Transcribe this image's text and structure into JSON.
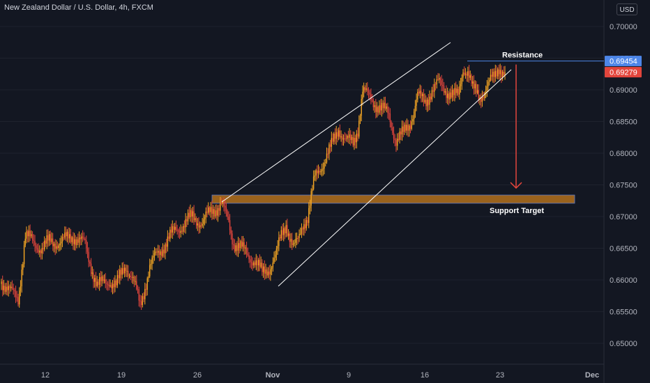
{
  "header": {
    "title": "New Zealand Dollar / U.S. Dollar, 4h, FXCM",
    "currency_button": "USD"
  },
  "colors": {
    "background": "#131722",
    "up_candle": "#f5a623",
    "down_candle": "#e2453c",
    "channel_line": "#ffffff",
    "support_zone": "#b8731c",
    "resistance_line": "#4d86e8",
    "arrow": "#e2453c",
    "price_tag_blue": "#4d86e8",
    "price_tag_red": "#e2453c"
  },
  "chart_data": {
    "type": "candlestick",
    "title": "New Zealand Dollar / U.S. Dollar, 4h, FXCM",
    "x_tick_labels": [
      "12",
      "19",
      "26",
      "Nov",
      "9",
      "16",
      "23",
      "Dec"
    ],
    "y_tick_labels": [
      "0.70000",
      "0.69500",
      "0.69000",
      "0.68500",
      "0.68000",
      "0.67500",
      "0.67000",
      "0.66500",
      "0.66000",
      "0.65500",
      "0.65000"
    ],
    "ylim": [
      0.6445,
      0.7027
    ],
    "price_tags": [
      {
        "label": "0.69454",
        "value": 0.69454,
        "color": "blue"
      },
      {
        "label": "0.69279",
        "value": 0.69279,
        "color": "red"
      }
    ],
    "annotations": {
      "resistance_label": "Resistance",
      "support_label": "Support Target",
      "resistance_level": 0.69454,
      "support_zone": [
        0.6721,
        0.6734
      ],
      "target_arrow": {
        "from": 0.694,
        "to": 0.6745
      }
    },
    "series": [
      {
        "anchors": [
          [
            0,
            0.66
          ],
          [
            8,
            0.658
          ],
          [
            14,
            0.657
          ],
          [
            20,
            0.667
          ],
          [
            26,
            0.666
          ],
          [
            34,
            0.665
          ],
          [
            40,
            0.666
          ],
          [
            50,
            0.666
          ],
          [
            60,
            0.667
          ],
          [
            70,
            0.6655
          ],
          [
            80,
            0.659
          ],
          [
            90,
            0.66
          ],
          [
            96,
            0.659
          ],
          [
            104,
            0.6625
          ],
          [
            110,
            0.66
          ],
          [
            116,
            0.656
          ],
          [
            124,
            0.662
          ],
          [
            130,
            0.664
          ],
          [
            138,
            0.666
          ],
          [
            146,
            0.668
          ],
          [
            154,
            0.669
          ],
          [
            160,
            0.67
          ],
          [
            168,
            0.669
          ],
          [
            176,
            0.671
          ],
          [
            184,
            0.672
          ],
          [
            190,
            0.669
          ],
          [
            194,
            0.666
          ],
          [
            200,
            0.665
          ],
          [
            206,
            0.664
          ],
          [
            212,
            0.663
          ],
          [
            218,
            0.661
          ],
          [
            224,
            0.662
          ],
          [
            230,
            0.664
          ],
          [
            234,
            0.667
          ],
          [
            238,
            0.669
          ],
          [
            244,
            0.665
          ],
          [
            248,
            0.666
          ],
          [
            252,
            0.669
          ],
          [
            256,
            0.67
          ],
          [
            262,
            0.676
          ],
          [
            270,
            0.679
          ],
          [
            276,
            0.681
          ],
          [
            282,
            0.684
          ],
          [
            288,
            0.682
          ],
          [
            294,
            0.6815
          ],
          [
            298,
            0.684
          ],
          [
            302,
            0.69
          ],
          [
            306,
            0.689
          ],
          [
            312,
            0.688
          ],
          [
            318,
            0.687
          ],
          [
            324,
            0.686
          ],
          [
            330,
            0.682
          ],
          [
            336,
            0.683
          ],
          [
            342,
            0.685
          ],
          [
            348,
            0.689
          ],
          [
            354,
            0.688
          ],
          [
            360,
            0.69
          ],
          [
            366,
            0.691
          ],
          [
            372,
            0.69
          ],
          [
            378,
            0.689
          ],
          [
            382,
            0.689
          ],
          [
            386,
            0.6935
          ],
          [
            390,
            0.693
          ],
          [
            394,
            0.69
          ],
          [
            400,
            0.689
          ],
          [
            406,
            0.6905
          ],
          [
            412,
            0.692
          ],
          [
            416,
            0.6938
          ],
          [
            419,
            0.693
          ],
          [
            421,
            0.6928
          ]
        ]
      }
    ]
  }
}
